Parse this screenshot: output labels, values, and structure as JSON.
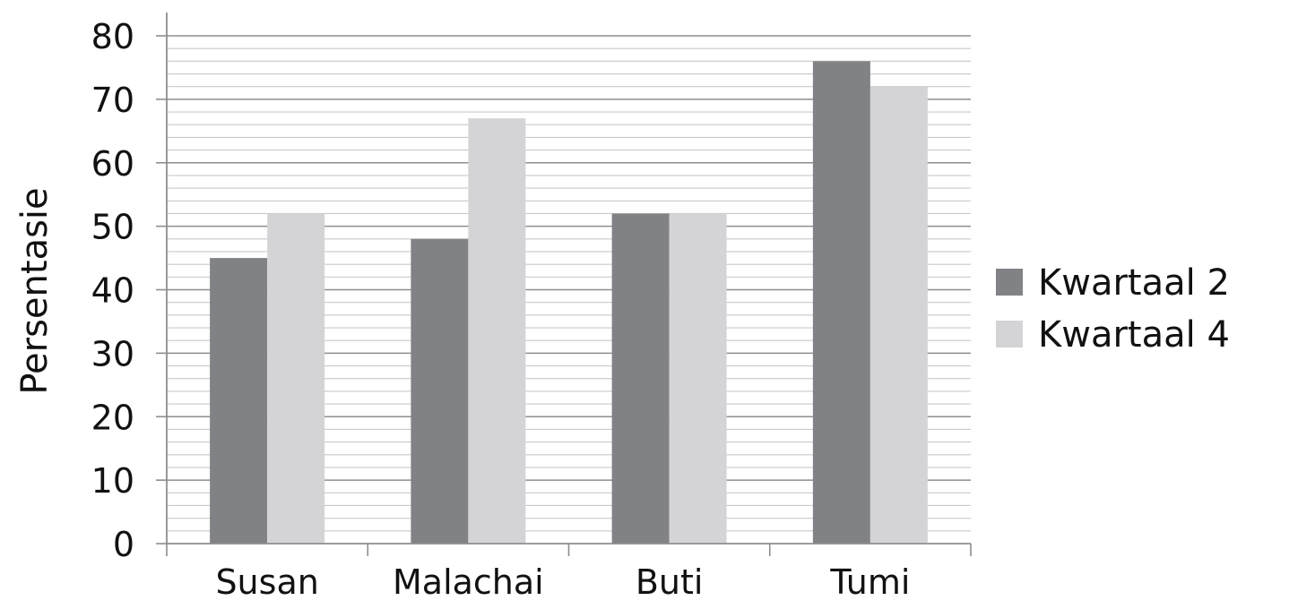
{
  "chart_data": {
    "type": "bar",
    "title": "",
    "xlabel": "",
    "ylabel": "Persentasie",
    "categories": [
      "Susan",
      "Malachai",
      "Buti",
      "Tumi"
    ],
    "series": [
      {
        "name": "Kwartaal 2",
        "values": [
          45,
          48,
          52,
          76
        ],
        "color": "#818285"
      },
      {
        "name": "Kwartaal 4",
        "values": [
          52,
          67,
          52,
          72
        ],
        "color": "#d4d4d6"
      }
    ],
    "ylim": [
      0,
      80
    ],
    "y_ticks": [
      "0",
      "10",
      "20",
      "30",
      "40",
      "50",
      "60",
      "70",
      "80"
    ],
    "grid": true,
    "legend_position": "right"
  }
}
